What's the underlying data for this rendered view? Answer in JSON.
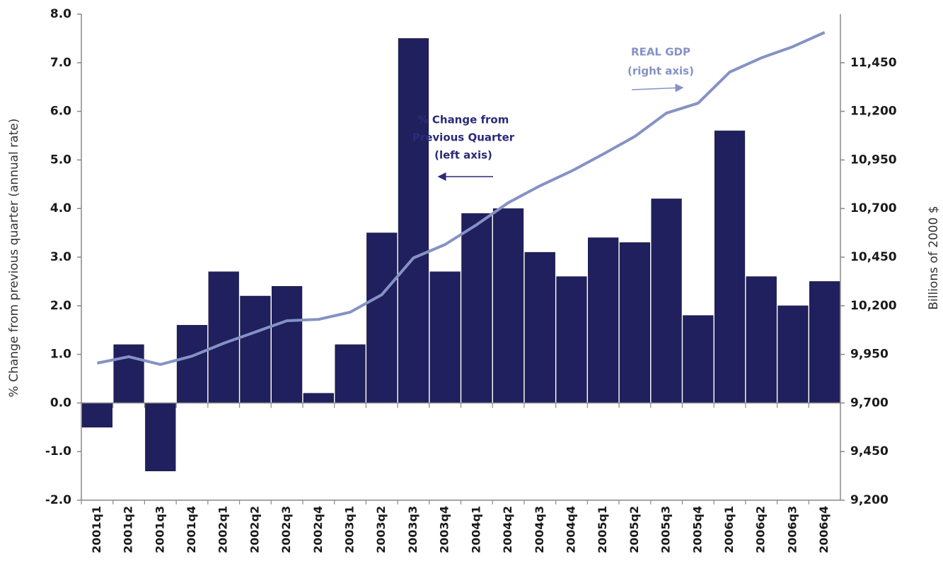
{
  "chart_data": {
    "type": "bar",
    "y_label": "% Change from previous quarter (annual rate)",
    "y2_label": "Billions of 2000 $",
    "categories": [
      "2001q1",
      "2001q2",
      "2001q3",
      "2001q4",
      "2002q1",
      "2002q2",
      "2002q3",
      "2002q4",
      "2003q1",
      "2003q2",
      "2003q3",
      "2003q4",
      "2004q1",
      "2004q2",
      "2004q3",
      "2004q4",
      "2005q1",
      "2005q2",
      "2005q3",
      "2005q4",
      "2006q1",
      "2006q2",
      "2006q3",
      "2006q4"
    ],
    "series": [
      {
        "type": "bar",
        "color": "#20205e",
        "values": [
          -0.5,
          1.2,
          -1.4,
          1.6,
          2.7,
          2.2,
          2.4,
          0.2,
          1.2,
          3.5,
          7.5,
          2.7,
          3.9,
          4.0,
          3.1,
          2.6,
          3.4,
          3.3,
          4.2,
          1.8,
          5.6,
          2.6,
          2.0,
          2.5
        ]
      },
      {
        "type": "line",
        "axis": "y2",
        "color": "#8592c4",
        "values": [
          9905,
          9938,
          9898,
          9941,
          10007,
          10065,
          10123,
          10130,
          10167,
          10257,
          10446,
          10515,
          10617,
          10730,
          10817,
          10893,
          10980,
          11071,
          11191,
          11242,
          11402,
          11475,
          11533,
          11606
        ]
      }
    ],
    "ylim": [
      -2,
      8
    ],
    "yticks": [
      {
        "value": -2,
        "label": "-2.0"
      },
      {
        "value": -1,
        "label": "-1.0"
      },
      {
        "value": 0,
        "label": "0.0"
      },
      {
        "value": 1,
        "label": "1.0"
      },
      {
        "value": 2,
        "label": "2.0"
      },
      {
        "value": 3,
        "label": "3.0"
      },
      {
        "value": 4,
        "label": "4.0"
      },
      {
        "value": 5,
        "label": "5.0"
      },
      {
        "value": 6,
        "label": "6.0"
      },
      {
        "value": 7,
        "label": "7.0"
      },
      {
        "value": 8,
        "label": "8.0"
      }
    ],
    "y2lim": [
      9200,
      11700
    ],
    "y2ticks": [
      {
        "value": 9200,
        "label": "9,200"
      },
      {
        "value": 9450,
        "label": "9,450"
      },
      {
        "value": 9700,
        "label": "9,700"
      },
      {
        "value": 9950,
        "label": "9,950"
      },
      {
        "value": 10200,
        "label": "10,200"
      },
      {
        "value": 10450,
        "label": "10,450"
      },
      {
        "value": 10700,
        "label": "10,700"
      },
      {
        "value": 10950,
        "label": "10,950"
      },
      {
        "value": 11200,
        "label": "11,200"
      },
      {
        "value": 11450,
        "label": "11,450"
      }
    ],
    "annotations": [
      {
        "lines": [
          "REAL GDP",
          "(right axis)"
        ]
      },
      {
        "lines": [
          "% Change from",
          "Previous Quarter",
          "(left axis)"
        ]
      }
    ]
  }
}
